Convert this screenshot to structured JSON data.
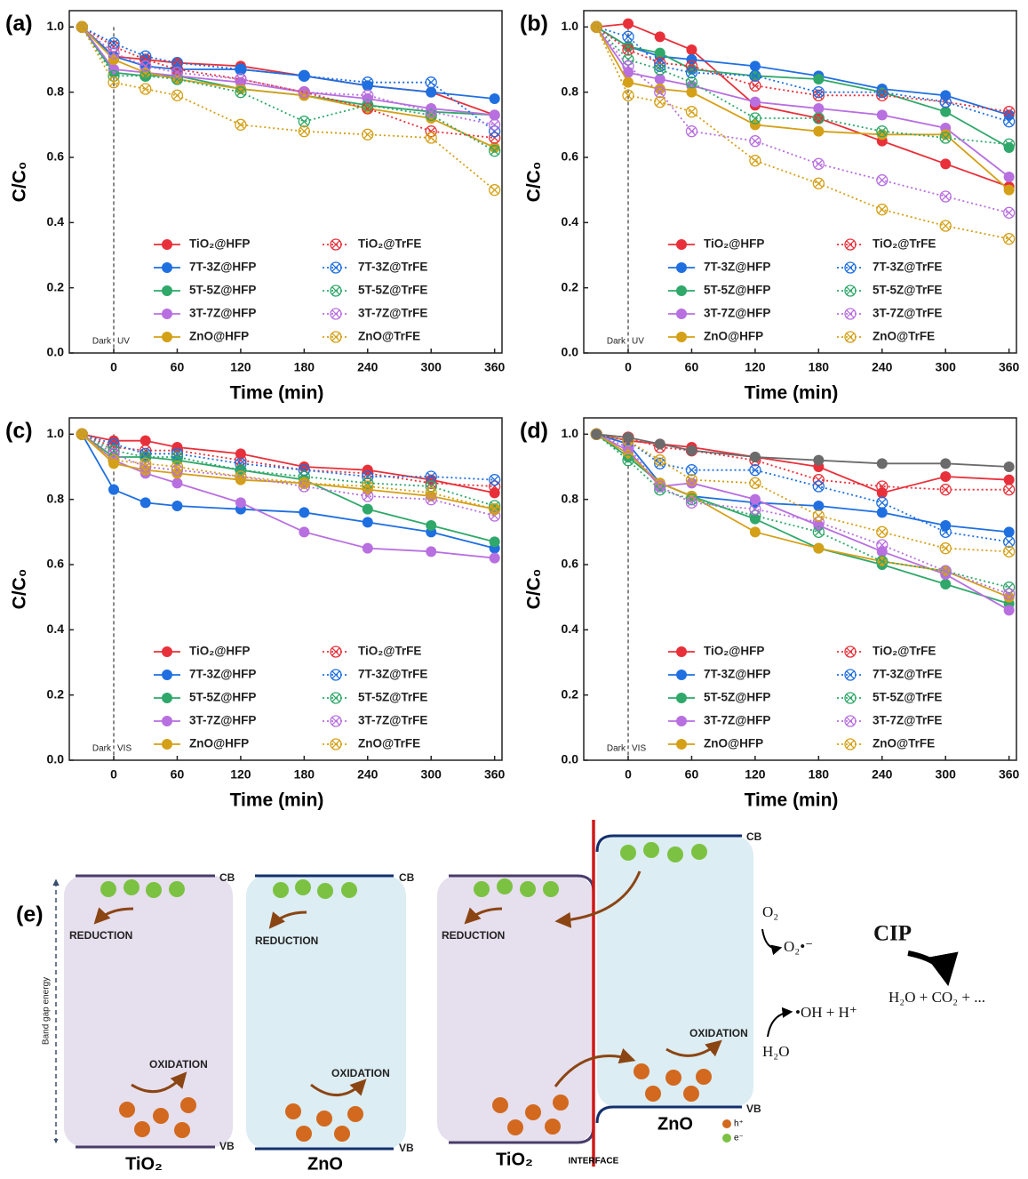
{
  "chart_data": [
    {
      "type": "line",
      "label": "(a)",
      "x_label": "Time (min)",
      "y_label": "C/C₀",
      "annotations": [
        "Dark",
        "UV"
      ],
      "light_on": 0,
      "x": [
        -30,
        0,
        30,
        60,
        120,
        180,
        240,
        300,
        360
      ],
      "xlim": [
        -42,
        367
      ],
      "ylim": [
        0,
        1.05
      ],
      "xticks": [
        0,
        60,
        120,
        180,
        240,
        300,
        360
      ],
      "yticks": [
        {
          "value": 0,
          "label": "0.0"
        },
        0.2,
        0.4,
        0.6,
        0.8,
        {
          "value": 1,
          "label": "1.0"
        }
      ],
      "legend": "bottom",
      "series": [
        {
          "name": "TiO₂@HFP",
          "color": "#e8303a",
          "line": "solid",
          "marker": "filled",
          "values": [
            1.0,
            0.91,
            0.9,
            0.89,
            0.88,
            0.85,
            0.82,
            0.8,
            0.73
          ]
        },
        {
          "name": "7T-3Z@HFP",
          "color": "#1f6fe0",
          "line": "solid",
          "marker": "filled",
          "values": [
            1.0,
            0.91,
            0.88,
            0.87,
            0.87,
            0.85,
            0.82,
            0.8,
            0.78
          ]
        },
        {
          "name": "5T-5Z@HFP",
          "color": "#2fa86a",
          "line": "solid",
          "marker": "filled",
          "values": [
            1.0,
            0.86,
            0.85,
            0.85,
            0.81,
            0.79,
            0.76,
            0.74,
            0.73
          ]
        },
        {
          "name": "3T-7Z@HFP",
          "color": "#b86fe0",
          "line": "solid",
          "marker": "filled",
          "values": [
            1.0,
            0.87,
            0.86,
            0.85,
            0.83,
            0.8,
            0.78,
            0.75,
            0.73
          ]
        },
        {
          "name": "ZnO@HFP",
          "color": "#d4a017",
          "line": "solid",
          "marker": "filled",
          "values": [
            1.0,
            0.9,
            0.86,
            0.84,
            0.81,
            0.79,
            0.75,
            0.72,
            0.63
          ]
        },
        {
          "name": "TiO₂@TrFE",
          "color": "#e8303a",
          "line": "dotted",
          "marker": "crossed",
          "values": [
            1.0,
            0.94,
            0.9,
            0.87,
            0.84,
            0.8,
            0.75,
            0.68,
            0.66
          ]
        },
        {
          "name": "7T-3Z@TrFE",
          "color": "#1f6fe0",
          "line": "dotted",
          "marker": "crossed",
          "values": [
            1.0,
            0.95,
            0.91,
            0.89,
            0.87,
            0.85,
            0.83,
            0.83,
            0.68
          ]
        },
        {
          "name": "5T-5Z@TrFE",
          "color": "#2fa86a",
          "line": "dotted",
          "marker": "crossed",
          "values": [
            1.0,
            0.85,
            0.85,
            0.84,
            0.8,
            0.71,
            0.76,
            0.73,
            0.62
          ]
        },
        {
          "name": "3T-7Z@TrFE",
          "color": "#b86fe0",
          "line": "dotted",
          "marker": "crossed",
          "values": [
            1.0,
            0.92,
            0.88,
            0.86,
            0.84,
            0.8,
            0.79,
            0.74,
            0.7
          ]
        },
        {
          "name": "ZnO@TrFE",
          "color": "#d4a017",
          "line": "dotted",
          "marker": "crossed",
          "values": [
            1.0,
            0.83,
            0.81,
            0.79,
            0.7,
            0.68,
            0.67,
            0.66,
            0.5
          ]
        }
      ]
    },
    {
      "type": "line",
      "label": "(b)",
      "x_label": "Time (min)",
      "y_label": "C/C₀",
      "annotations": [
        "Dark",
        "UV"
      ],
      "light_on": 0,
      "x": [
        -30,
        0,
        30,
        60,
        120,
        180,
        240,
        300,
        360
      ],
      "xlim": [
        -42,
        367
      ],
      "ylim": [
        0,
        1.05
      ],
      "xticks": [
        0,
        60,
        120,
        180,
        240,
        300,
        360
      ],
      "yticks": [
        {
          "value": 0,
          "label": "0.0"
        },
        0.2,
        0.4,
        0.6,
        0.8,
        {
          "value": 1,
          "label": "1.0"
        }
      ],
      "legend": "bottom",
      "series": [
        {
          "name": "TiO₂@HFP",
          "color": "#e8303a",
          "line": "solid",
          "marker": "filled",
          "values": [
            1.0,
            1.01,
            0.97,
            0.93,
            0.76,
            0.72,
            0.65,
            0.58,
            0.51
          ]
        },
        {
          "name": "7T-3Z@HFP",
          "color": "#1f6fe0",
          "line": "solid",
          "marker": "filled",
          "values": [
            1.0,
            0.94,
            0.91,
            0.9,
            0.88,
            0.85,
            0.81,
            0.79,
            0.73
          ]
        },
        {
          "name": "5T-5Z@HFP",
          "color": "#2fa86a",
          "line": "solid",
          "marker": "filled",
          "values": [
            1.0,
            0.94,
            0.92,
            0.87,
            0.85,
            0.84,
            0.8,
            0.74,
            0.63
          ]
        },
        {
          "name": "3T-7Z@HFP",
          "color": "#b86fe0",
          "line": "solid",
          "marker": "filled",
          "values": [
            1.0,
            0.86,
            0.84,
            0.82,
            0.77,
            0.75,
            0.73,
            0.69,
            0.54
          ]
        },
        {
          "name": "ZnO@HFP",
          "color": "#d4a017",
          "line": "solid",
          "marker": "filled",
          "values": [
            1.0,
            0.83,
            0.81,
            0.8,
            0.7,
            0.68,
            0.67,
            0.67,
            0.5
          ]
        },
        {
          "name": "TiO₂@TrFE",
          "color": "#e8303a",
          "line": "dotted",
          "marker": "crossed",
          "values": [
            1.0,
            0.93,
            0.89,
            0.88,
            0.82,
            0.79,
            0.79,
            0.77,
            0.74
          ]
        },
        {
          "name": "7T-3Z@TrFE",
          "color": "#1f6fe0",
          "line": "dotted",
          "marker": "crossed",
          "values": [
            1.0,
            0.97,
            0.88,
            0.86,
            0.85,
            0.8,
            0.8,
            0.77,
            0.71
          ]
        },
        {
          "name": "5T-5Z@TrFE",
          "color": "#2fa86a",
          "line": "dotted",
          "marker": "crossed",
          "values": [
            1.0,
            0.9,
            0.87,
            0.83,
            0.72,
            0.72,
            0.68,
            0.66,
            0.64
          ]
        },
        {
          "name": "3T-7Z@TrFE",
          "color": "#b86fe0",
          "line": "dotted",
          "marker": "crossed",
          "values": [
            1.0,
            0.88,
            0.8,
            0.68,
            0.65,
            0.58,
            0.53,
            0.48,
            0.43
          ]
        },
        {
          "name": "ZnO@TrFE",
          "color": "#d4a017",
          "line": "dotted",
          "marker": "crossed",
          "values": [
            1.0,
            0.79,
            0.77,
            0.74,
            0.59,
            0.52,
            0.44,
            0.39,
            0.35
          ]
        }
      ]
    },
    {
      "type": "line",
      "label": "(c)",
      "x_label": "Time (min)",
      "y_label": "C/C₀",
      "annotations": [
        "Dark",
        "VIS"
      ],
      "light_on": 0,
      "x": [
        -30,
        0,
        30,
        60,
        120,
        180,
        240,
        300,
        360
      ],
      "xlim": [
        -42,
        367
      ],
      "ylim": [
        0,
        1.05
      ],
      "xticks": [
        0,
        60,
        120,
        180,
        240,
        300,
        360
      ],
      "yticks": [
        {
          "value": 0,
          "label": "0.0"
        },
        0.2,
        0.4,
        0.6,
        0.8,
        {
          "value": 1,
          "label": "1.0"
        }
      ],
      "legend": "bottom",
      "series": [
        {
          "name": "TiO₂@HFP",
          "color": "#e8303a",
          "line": "solid",
          "marker": "filled",
          "values": [
            1.0,
            0.98,
            0.98,
            0.96,
            0.94,
            0.9,
            0.89,
            0.86,
            0.82
          ]
        },
        {
          "name": "7T-3Z@HFP",
          "color": "#1f6fe0",
          "line": "solid",
          "marker": "filled",
          "values": [
            1.0,
            0.83,
            0.79,
            0.78,
            0.77,
            0.76,
            0.73,
            0.7,
            0.65
          ]
        },
        {
          "name": "5T-5Z@HFP",
          "color": "#2fa86a",
          "line": "solid",
          "marker": "filled",
          "values": [
            1.0,
            0.93,
            0.93,
            0.92,
            0.89,
            0.86,
            0.77,
            0.72,
            0.67
          ]
        },
        {
          "name": "3T-7Z@HFP",
          "color": "#b86fe0",
          "line": "solid",
          "marker": "filled",
          "values": [
            1.0,
            0.92,
            0.88,
            0.85,
            0.79,
            0.7,
            0.65,
            0.64,
            0.62
          ]
        },
        {
          "name": "ZnO@HFP",
          "color": "#d4a017",
          "line": "solid",
          "marker": "filled",
          "values": [
            1.0,
            0.91,
            0.89,
            0.88,
            0.86,
            0.85,
            0.83,
            0.81,
            0.77
          ]
        },
        {
          "name": "TiO₂@TrFE",
          "color": "#e8303a",
          "line": "dotted",
          "marker": "crossed",
          "values": [
            1.0,
            0.96,
            0.95,
            0.95,
            0.92,
            0.89,
            0.88,
            0.85,
            0.84
          ]
        },
        {
          "name": "7T-3Z@TrFE",
          "color": "#1f6fe0",
          "line": "dotted",
          "marker": "crossed",
          "values": [
            1.0,
            0.97,
            0.94,
            0.94,
            0.91,
            0.89,
            0.87,
            0.87,
            0.86
          ]
        },
        {
          "name": "5T-5Z@TrFE",
          "color": "#2fa86a",
          "line": "dotted",
          "marker": "crossed",
          "values": [
            1.0,
            0.95,
            0.93,
            0.93,
            0.89,
            0.87,
            0.85,
            0.84,
            0.78
          ]
        },
        {
          "name": "3T-7Z@TrFE",
          "color": "#b86fe0",
          "line": "dotted",
          "marker": "crossed",
          "values": [
            1.0,
            0.94,
            0.9,
            0.89,
            0.87,
            0.84,
            0.81,
            0.8,
            0.75
          ]
        },
        {
          "name": "ZnO@TrFE",
          "color": "#d4a017",
          "line": "dotted",
          "marker": "crossed",
          "values": [
            1.0,
            0.92,
            0.91,
            0.9,
            0.87,
            0.85,
            0.84,
            0.82,
            0.77
          ]
        }
      ]
    },
    {
      "type": "line",
      "label": "(d)",
      "x_label": "Time (min)",
      "y_label": "C/C₀",
      "annotations": [
        "Dark",
        "VIS"
      ],
      "light_on": 0,
      "x": [
        -30,
        0,
        30,
        60,
        120,
        180,
        240,
        300,
        360
      ],
      "xlim": [
        -42,
        367
      ],
      "ylim": [
        0,
        1.05
      ],
      "xticks": [
        0,
        60,
        120,
        180,
        240,
        300,
        360
      ],
      "yticks": [
        {
          "value": 0,
          "label": "0.0"
        },
        0.2,
        0.4,
        0.6,
        0.8,
        {
          "value": 1,
          "label": "1.0"
        }
      ],
      "legend": "bottom",
      "series": [
        {
          "name": "TiO₂@HFP",
          "color": "#e8303a",
          "line": "solid",
          "marker": "filled",
          "values": [
            1.0,
            0.98,
            0.97,
            0.96,
            0.93,
            0.9,
            0.82,
            0.87,
            0.86
          ]
        },
        {
          "name": "7T-3Z@HFP",
          "color": "#1f6fe0",
          "line": "solid",
          "marker": "filled",
          "values": [
            1.0,
            0.97,
            0.85,
            0.81,
            0.79,
            0.78,
            0.76,
            0.72,
            0.7
          ]
        },
        {
          "name": "5T-5Z@HFP",
          "color": "#2fa86a",
          "line": "solid",
          "marker": "filled",
          "values": [
            1.0,
            0.93,
            0.85,
            0.81,
            0.74,
            0.65,
            0.6,
            0.54,
            0.48
          ]
        },
        {
          "name": "3T-7Z@HFP",
          "color": "#b86fe0",
          "line": "solid",
          "marker": "filled",
          "values": [
            1.0,
            0.95,
            0.84,
            0.85,
            0.8,
            0.72,
            0.64,
            0.57,
            0.46
          ]
        },
        {
          "name": "ZnO@HFP",
          "color": "#d4a017",
          "line": "solid",
          "marker": "filled",
          "values": [
            1.0,
            0.94,
            0.85,
            0.81,
            0.7,
            0.65,
            0.61,
            0.58,
            0.5
          ]
        },
        {
          "name": "TiO₂@TrFE",
          "color": "#e8303a",
          "line": "dotted",
          "marker": "crossed",
          "values": [
            1.0,
            0.99,
            0.96,
            0.95,
            0.92,
            0.86,
            0.84,
            0.83,
            0.83
          ]
        },
        {
          "name": "7T-3Z@TrFE",
          "color": "#1f6fe0",
          "line": "dotted",
          "marker": "crossed",
          "values": [
            1.0,
            0.98,
            0.91,
            0.89,
            0.89,
            0.84,
            0.79,
            0.7,
            0.67
          ]
        },
        {
          "name": "5T-5Z@TrFE",
          "color": "#2fa86a",
          "line": "dotted",
          "marker": "crossed",
          "values": [
            1.0,
            0.92,
            0.83,
            0.8,
            0.75,
            0.7,
            0.61,
            0.58,
            0.53
          ]
        },
        {
          "name": "3T-7Z@TrFE",
          "color": "#b86fe0",
          "line": "dotted",
          "marker": "crossed",
          "values": [
            1.0,
            0.96,
            0.84,
            0.79,
            0.77,
            0.73,
            0.66,
            0.58,
            0.51
          ]
        },
        {
          "name": "ZnO@TrFE",
          "color": "#d4a017",
          "line": "dotted",
          "marker": "crossed",
          "values": [
            1.0,
            0.98,
            0.92,
            0.86,
            0.85,
            0.75,
            0.7,
            0.65,
            0.64
          ]
        },
        {
          "color": "#6b6b6b",
          "line": "solid",
          "marker": "filled",
          "values": [
            1.0,
            0.99,
            0.97,
            0.95,
            0.93,
            0.92,
            0.91,
            0.91,
            0.9
          ]
        }
      ]
    }
  ],
  "diagram": {
    "label": "(e)",
    "band_gap_axis": "Band gap energy",
    "cb": "CB",
    "vb": "VB",
    "reduction": "REDUCTION",
    "oxidation": "OXIDATION",
    "tio2": "TiO₂",
    "zno": "ZnO",
    "interface": "INTERFACE",
    "hole_legend": "h⁺",
    "electron_legend": "e⁻",
    "o2": "O₂",
    "superoxide": "O₂•⁻",
    "hydroxyl": "•OH + H⁺",
    "water": "H₂O",
    "cip": "CIP",
    "products": "H₂O + CO₂ + ..."
  }
}
